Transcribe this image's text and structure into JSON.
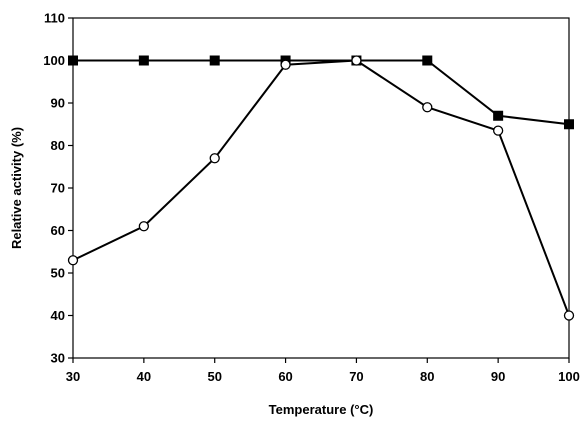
{
  "chart_data": {
    "type": "line",
    "title": "",
    "xlabel": "Temperature (°C)",
    "ylabel": "Relative activity (%)",
    "xlim": [
      30,
      100
    ],
    "ylim": [
      30,
      110
    ],
    "x_ticks": [
      30,
      40,
      50,
      60,
      70,
      80,
      90,
      100
    ],
    "y_ticks": [
      30,
      40,
      50,
      60,
      70,
      80,
      90,
      100,
      110
    ],
    "grid": false,
    "legend": "none",
    "series": [
      {
        "marker": "filled-square",
        "color": "#000000",
        "x": [
          30,
          40,
          50,
          60,
          70,
          80,
          90,
          100
        ],
        "y": [
          100,
          100,
          100,
          100,
          100,
          100,
          87,
          85
        ]
      },
      {
        "marker": "open-circle",
        "color": "#000000",
        "x": [
          30,
          40,
          50,
          60,
          70,
          80,
          90,
          100
        ],
        "y": [
          53,
          61,
          77,
          99,
          100,
          89,
          83.5,
          40
        ]
      }
    ]
  }
}
